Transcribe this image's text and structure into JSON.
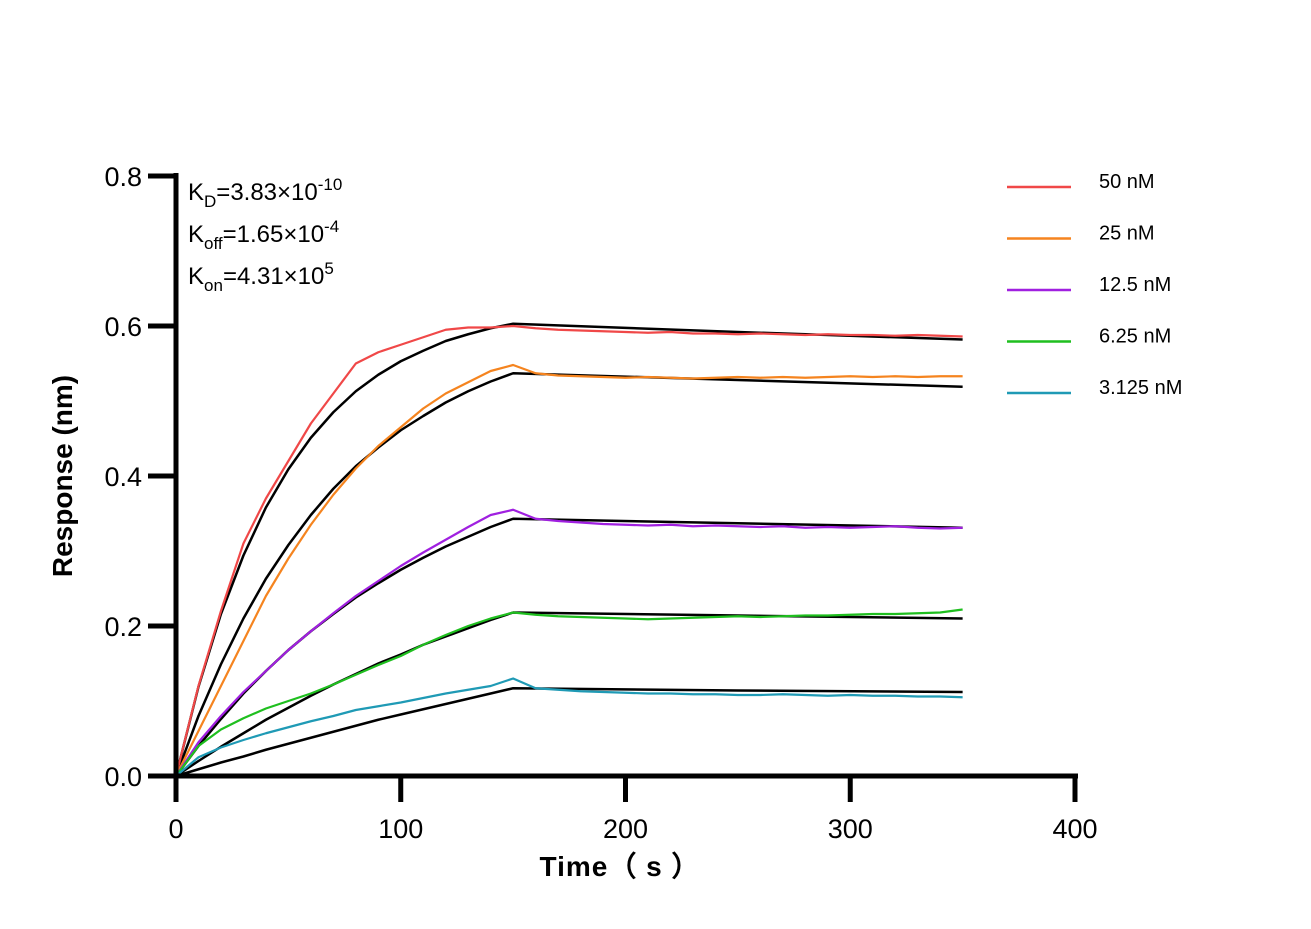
{
  "chart_data": {
    "type": "line",
    "xlabel": "Time（ s ）",
    "ylabel": "Response (nm)",
    "xlim": [
      0,
      400
    ],
    "ylim": [
      0,
      0.8
    ],
    "xticks": [
      "0",
      "100",
      "200",
      "300",
      "400"
    ],
    "yticks": [
      "0.0",
      "0.2",
      "0.4",
      "0.6",
      "0.8"
    ],
    "grid": false,
    "legend_position": "top-right",
    "annotations": [
      {
        "main": "K",
        "sub": "D",
        "text": "=3.83×10",
        "sup": "-10"
      },
      {
        "main": "K",
        "sub": "off",
        "text": "=1.65×10",
        "sup": "-4"
      },
      {
        "main": "K",
        "sub": "on",
        "text": "=4.31×10",
        "sup": "5"
      }
    ],
    "x": [
      0,
      10,
      20,
      30,
      40,
      50,
      60,
      70,
      80,
      90,
      100,
      110,
      120,
      130,
      140,
      150,
      160,
      170,
      180,
      190,
      200,
      210,
      220,
      230,
      240,
      250,
      260,
      270,
      280,
      290,
      300,
      310,
      320,
      330,
      340,
      350
    ],
    "series": [
      {
        "name": "50 nM",
        "color": "#f04848",
        "values": [
          0,
          0.12,
          0.22,
          0.31,
          0.37,
          0.42,
          0.47,
          0.51,
          0.55,
          0.565,
          0.575,
          0.585,
          0.595,
          0.598,
          0.598,
          0.6,
          0.597,
          0.595,
          0.594,
          0.593,
          0.592,
          0.591,
          0.592,
          0.59,
          0.59,
          0.589,
          0.59,
          0.589,
          0.588,
          0.589,
          0.588,
          0.588,
          0.587,
          0.588,
          0.587,
          0.586
        ]
      },
      {
        "name": "25 nM",
        "color": "#f5841f",
        "values": [
          0,
          0.06,
          0.12,
          0.18,
          0.24,
          0.29,
          0.335,
          0.375,
          0.41,
          0.44,
          0.465,
          0.49,
          0.51,
          0.525,
          0.54,
          0.548,
          0.537,
          0.534,
          0.533,
          0.532,
          0.531,
          0.532,
          0.531,
          0.53,
          0.531,
          0.532,
          0.531,
          0.532,
          0.531,
          0.532,
          0.533,
          0.532,
          0.533,
          0.532,
          0.533,
          0.533
        ]
      },
      {
        "name": "12.5 nM",
        "color": "#a020e0",
        "values": [
          0,
          0.045,
          0.08,
          0.112,
          0.14,
          0.168,
          0.193,
          0.217,
          0.24,
          0.26,
          0.28,
          0.298,
          0.315,
          0.332,
          0.348,
          0.355,
          0.343,
          0.34,
          0.338,
          0.336,
          0.335,
          0.334,
          0.335,
          0.333,
          0.334,
          0.333,
          0.332,
          0.333,
          0.331,
          0.332,
          0.331,
          0.332,
          0.333,
          0.331,
          0.33,
          0.331
        ]
      },
      {
        "name": "6.25 nM",
        "color": "#1fbf1f",
        "values": [
          0,
          0.04,
          0.062,
          0.077,
          0.09,
          0.1,
          0.11,
          0.122,
          0.135,
          0.148,
          0.16,
          0.175,
          0.188,
          0.2,
          0.21,
          0.218,
          0.215,
          0.213,
          0.212,
          0.211,
          0.21,
          0.209,
          0.21,
          0.211,
          0.212,
          0.213,
          0.212,
          0.213,
          0.214,
          0.214,
          0.215,
          0.216,
          0.216,
          0.217,
          0.218,
          0.222
        ]
      },
      {
        "name": "3.125 nM",
        "color": "#1f9ab5",
        "values": [
          0,
          0.025,
          0.038,
          0.048,
          0.057,
          0.065,
          0.073,
          0.08,
          0.088,
          0.093,
          0.098,
          0.104,
          0.11,
          0.115,
          0.12,
          0.13,
          0.117,
          0.115,
          0.113,
          0.112,
          0.111,
          0.11,
          0.11,
          0.109,
          0.109,
          0.108,
          0.108,
          0.109,
          0.108,
          0.107,
          0.108,
          0.107,
          0.107,
          0.106,
          0.106,
          0.105
        ]
      }
    ],
    "fits": {
      "color": "#000000",
      "x": [
        0,
        10,
        20,
        30,
        40,
        50,
        60,
        70,
        80,
        90,
        100,
        110,
        120,
        130,
        140,
        150,
        250,
        350
      ],
      "series": [
        [
          0,
          0.119,
          0.216,
          0.294,
          0.358,
          0.409,
          0.451,
          0.485,
          0.513,
          0.535,
          0.553,
          0.567,
          0.58,
          0.589,
          0.597,
          0.603,
          0.592,
          0.582
        ],
        [
          0,
          0.08,
          0.149,
          0.21,
          0.263,
          0.308,
          0.348,
          0.383,
          0.413,
          0.438,
          0.461,
          0.48,
          0.498,
          0.513,
          0.526,
          0.537,
          0.528,
          0.519
        ],
        [
          0,
          0.04,
          0.076,
          0.11,
          0.14,
          0.168,
          0.193,
          0.216,
          0.238,
          0.257,
          0.275,
          0.291,
          0.306,
          0.319,
          0.332,
          0.343,
          0.337,
          0.331
        ],
        [
          0,
          0.02,
          0.039,
          0.057,
          0.075,
          0.091,
          0.107,
          0.122,
          0.136,
          0.15,
          0.162,
          0.175,
          0.186,
          0.197,
          0.208,
          0.218,
          0.214,
          0.21
        ],
        [
          0,
          0.009,
          0.018,
          0.026,
          0.035,
          0.043,
          0.051,
          0.059,
          0.067,
          0.075,
          0.082,
          0.089,
          0.096,
          0.103,
          0.11,
          0.117,
          0.114,
          0.112
        ]
      ]
    }
  }
}
